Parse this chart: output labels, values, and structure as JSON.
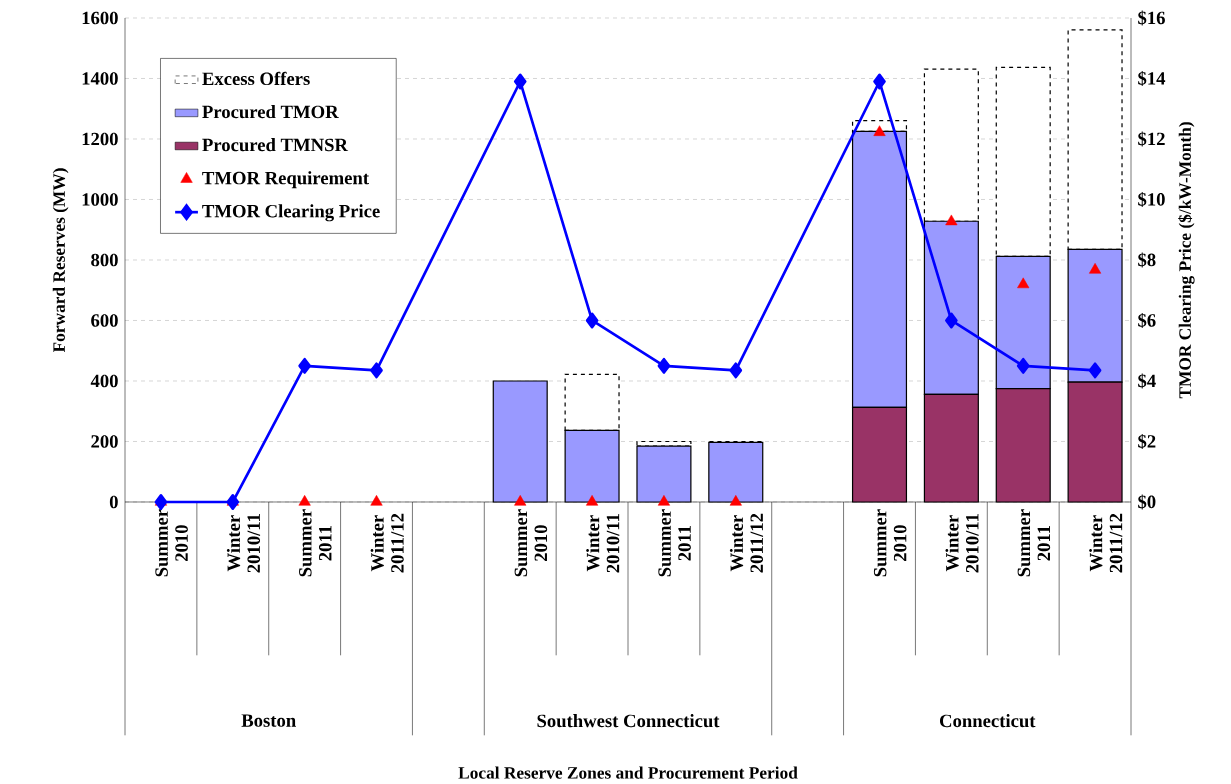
{
  "chart_data": {
    "type": "bar",
    "stacked": true,
    "ylabel": "Forward Reserves (MW)",
    "y2label": "TMOR Clearing Price ($/kW-Month)",
    "categories": [
      "Summer 2010",
      "Winter 2010/11",
      "Summer 2011",
      "Winter 2011/12",
      null,
      "Summer 2010",
      "Winter 2010/11",
      "Summer 2011",
      "Winter 2011/12",
      null,
      "Summer 2010",
      "Winter 2010/11",
      "Summer 2011",
      "Winter 2011/12"
    ],
    "annotations": [
      "Boston",
      "Southwest Connecticut",
      "Connecticut",
      "Local Reserve Zones and Procurement Period"
    ],
    "ylim": [
      0,
      1600
    ],
    "yticks": [
      0,
      200,
      400,
      600,
      800,
      1000,
      1200,
      1400,
      1600
    ],
    "y2lim": [
      0,
      16
    ],
    "y2ticks": [
      {
        "value": 0,
        "label": "$0"
      },
      {
        "value": 2,
        "label": "$2"
      },
      {
        "value": 4,
        "label": "$4"
      },
      {
        "value": 6,
        "label": "$6"
      },
      {
        "value": 8,
        "label": "$8"
      },
      {
        "value": 10,
        "label": "$10"
      },
      {
        "value": 12,
        "label": "$12"
      },
      {
        "value": 14,
        "label": "$14"
      },
      {
        "value": 16,
        "label": "$16"
      }
    ],
    "grid": "y",
    "legend": "top left",
    "series": [
      {
        "name": "Procured TMNSR",
        "color": "#993366",
        "values": [
          0,
          0,
          0,
          0,
          null,
          0,
          0,
          0,
          0,
          null,
          313,
          356,
          375,
          396
        ]
      },
      {
        "name": "Procured TMOR",
        "color": "#9999ff",
        "values": [
          0,
          0,
          0,
          0,
          null,
          400,
          237,
          185,
          197,
          null,
          912,
          572,
          437,
          439
        ]
      },
      {
        "name": "Excess Offers",
        "color": "#ffffff",
        "line_style": "dashed",
        "values": [
          0,
          0,
          0,
          0,
          null,
          0,
          185,
          15,
          3,
          null,
          36,
          503,
          625,
          726
        ]
      },
      {
        "name": "TMOR Requirement",
        "type": "scatter",
        "marker": "triangle",
        "color": "#ff0000",
        "values": [
          0,
          0,
          0,
          0,
          null,
          0,
          0,
          0,
          0,
          null,
          1222,
          927,
          719,
          767
        ]
      },
      {
        "name": "TMOR Clearing Price",
        "type": "line",
        "axis": "y2",
        "marker": "diamond",
        "color": "#0000ff",
        "values": [
          0,
          0,
          4.5,
          4.35,
          null,
          13.9,
          6.0,
          4.5,
          4.35,
          null,
          13.9,
          6.0,
          4.5,
          4.35
        ]
      }
    ]
  }
}
